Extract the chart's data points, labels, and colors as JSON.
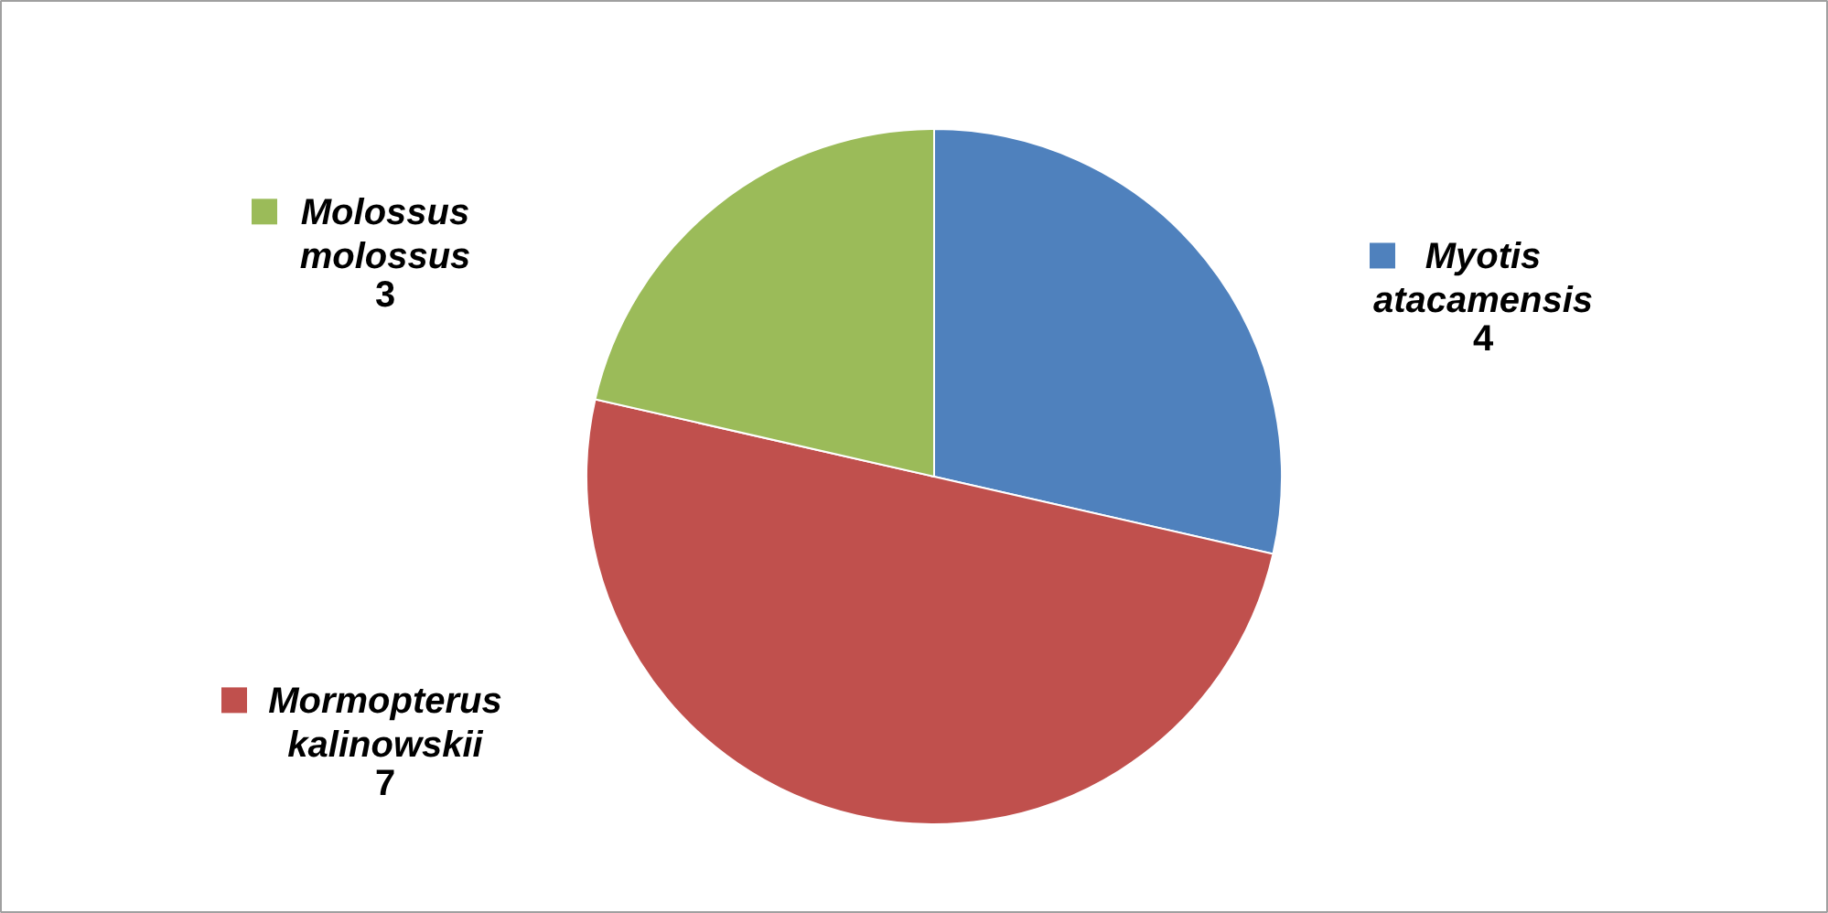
{
  "chart_data": {
    "type": "pie",
    "categories": [
      "Myotis atacamensis",
      "Mormopterus kalinowskii",
      "Molossus molossus"
    ],
    "values": [
      4,
      7,
      3
    ],
    "colors": [
      "#4f81bd",
      "#c0504d",
      "#9bbb59"
    ],
    "data_labels": true,
    "legend": "left"
  }
}
